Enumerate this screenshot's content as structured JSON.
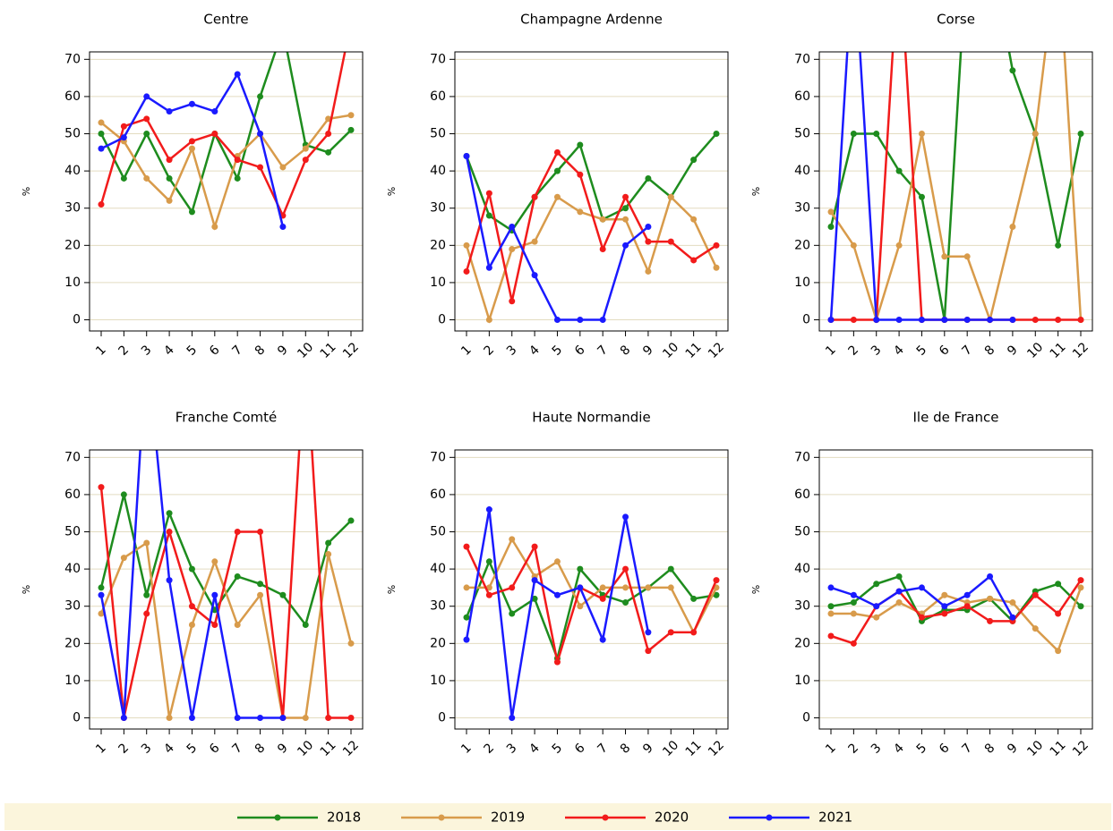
{
  "chart_data": [
    {
      "type": "line",
      "title": "Centre",
      "ylabel": "%",
      "categories": [
        "1",
        "2",
        "3",
        "4",
        "5",
        "6",
        "7",
        "8",
        "9",
        "10",
        "11",
        "12"
      ],
      "ylim": [
        -3,
        72
      ],
      "yticks": [
        0,
        10,
        20,
        30,
        40,
        50,
        60,
        70
      ],
      "grid": true,
      "series": [
        {
          "name": "2018",
          "color": "#1e8c1e",
          "values": [
            50,
            38,
            50,
            38,
            29,
            50,
            38,
            60,
            78,
            47,
            45,
            51
          ]
        },
        {
          "name": "2019",
          "color": "#d89b4b",
          "values": [
            53,
            48,
            38,
            32,
            46,
            25,
            44,
            50,
            41,
            46,
            54,
            55
          ]
        },
        {
          "name": "2020",
          "color": "#f21b1b",
          "values": [
            31,
            52,
            54,
            43,
            48,
            50,
            43,
            41,
            28,
            43,
            50,
            80
          ]
        },
        {
          "name": "2021",
          "color": "#1a1aff",
          "values": [
            46,
            49,
            60,
            56,
            58,
            56,
            66,
            50,
            25,
            null,
            null,
            null
          ]
        }
      ]
    },
    {
      "type": "line",
      "title": "Champagne Ardenne",
      "ylabel": "%",
      "categories": [
        "1",
        "2",
        "3",
        "4",
        "5",
        "6",
        "7",
        "8",
        "9",
        "10",
        "11",
        "12"
      ],
      "ylim": [
        -3,
        72
      ],
      "yticks": [
        0,
        10,
        20,
        30,
        40,
        50,
        60,
        70
      ],
      "grid": true,
      "series": [
        {
          "name": "2018",
          "color": "#1e8c1e",
          "values": [
            44,
            28,
            24,
            33,
            40,
            47,
            27,
            30,
            38,
            33,
            43,
            50
          ]
        },
        {
          "name": "2019",
          "color": "#d89b4b",
          "values": [
            20,
            0,
            19,
            21,
            33,
            29,
            27,
            27,
            13,
            33,
            27,
            14
          ]
        },
        {
          "name": "2020",
          "color": "#f21b1b",
          "values": [
            13,
            34,
            5,
            33,
            45,
            39,
            19,
            33,
            21,
            21,
            16,
            20
          ]
        },
        {
          "name": "2021",
          "color": "#1a1aff",
          "values": [
            44,
            14,
            25,
            12,
            0,
            0,
            0,
            20,
            25,
            null,
            null,
            null
          ]
        }
      ]
    },
    {
      "type": "line",
      "title": "Corse",
      "ylabel": "%",
      "categories": [
        "1",
        "2",
        "3",
        "4",
        "5",
        "6",
        "7",
        "8",
        "9",
        "10",
        "11",
        "12"
      ],
      "ylim": [
        -3,
        72
      ],
      "yticks": [
        0,
        10,
        20,
        30,
        40,
        50,
        60,
        70
      ],
      "grid": true,
      "series": [
        {
          "name": "2018",
          "color": "#1e8c1e",
          "values": [
            25,
            50,
            50,
            40,
            33,
            0,
            100,
            100,
            67,
            50,
            20,
            50
          ]
        },
        {
          "name": "2019",
          "color": "#d89b4b",
          "values": [
            29,
            20,
            0,
            20,
            50,
            17,
            17,
            0,
            25,
            50,
            100,
            0
          ]
        },
        {
          "name": "2020",
          "color": "#f21b1b",
          "values": [
            0,
            0,
            0,
            100,
            0,
            0,
            0,
            0,
            0,
            0,
            0,
            0
          ]
        },
        {
          "name": "2021",
          "color": "#1a1aff",
          "values": [
            0,
            100,
            0,
            0,
            0,
            0,
            0,
            0,
            0,
            null,
            null,
            null
          ]
        }
      ]
    },
    {
      "type": "line",
      "title": "Franche Comté",
      "ylabel": "%",
      "categories": [
        "1",
        "2",
        "3",
        "4",
        "5",
        "6",
        "7",
        "8",
        "9",
        "10",
        "11",
        "12"
      ],
      "ylim": [
        -3,
        72
      ],
      "yticks": [
        0,
        10,
        20,
        30,
        40,
        50,
        60,
        70
      ],
      "grid": true,
      "series": [
        {
          "name": "2018",
          "color": "#1e8c1e",
          "values": [
            35,
            60,
            33,
            55,
            40,
            29,
            38,
            36,
            33,
            25,
            47,
            53
          ]
        },
        {
          "name": "2019",
          "color": "#d89b4b",
          "values": [
            28,
            43,
            47,
            0,
            25,
            42,
            25,
            33,
            0,
            0,
            44,
            20
          ]
        },
        {
          "name": "2020",
          "color": "#f21b1b",
          "values": [
            62,
            0,
            28,
            50,
            30,
            25,
            50,
            50,
            0,
            100,
            0,
            0
          ]
        },
        {
          "name": "2021",
          "color": "#1a1aff",
          "values": [
            33,
            0,
            100,
            37,
            0,
            33,
            0,
            0,
            0,
            null,
            null,
            null
          ]
        }
      ]
    },
    {
      "type": "line",
      "title": "Haute Normandie",
      "ylabel": "%",
      "categories": [
        "1",
        "2",
        "3",
        "4",
        "5",
        "6",
        "7",
        "8",
        "9",
        "10",
        "11",
        "12"
      ],
      "ylim": [
        -3,
        72
      ],
      "yticks": [
        0,
        10,
        20,
        30,
        40,
        50,
        60,
        70
      ],
      "grid": true,
      "series": [
        {
          "name": "2018",
          "color": "#1e8c1e",
          "values": [
            27,
            42,
            28,
            32,
            16,
            40,
            33,
            31,
            35,
            40,
            32,
            33
          ]
        },
        {
          "name": "2019",
          "color": "#d89b4b",
          "values": [
            35,
            35,
            48,
            38,
            42,
            30,
            35,
            35,
            35,
            35,
            23,
            35
          ]
        },
        {
          "name": "2020",
          "color": "#f21b1b",
          "values": [
            46,
            33,
            35,
            46,
            15,
            35,
            32,
            40,
            18,
            23,
            23,
            37
          ]
        },
        {
          "name": "2021",
          "color": "#1a1aff",
          "values": [
            21,
            56,
            0,
            37,
            33,
            35,
            21,
            54,
            23,
            null,
            null,
            null
          ]
        }
      ]
    },
    {
      "type": "line",
      "title": "Ile de France",
      "ylabel": "%",
      "categories": [
        "1",
        "2",
        "3",
        "4",
        "5",
        "6",
        "7",
        "8",
        "9",
        "10",
        "11",
        "12"
      ],
      "ylim": [
        -3,
        72
      ],
      "yticks": [
        0,
        10,
        20,
        30,
        40,
        50,
        60,
        70
      ],
      "grid": true,
      "series": [
        {
          "name": "2018",
          "color": "#1e8c1e",
          "values": [
            30,
            31,
            36,
            38,
            26,
            29,
            29,
            32,
            26,
            34,
            36,
            30
          ]
        },
        {
          "name": "2019",
          "color": "#d89b4b",
          "values": [
            28,
            28,
            27,
            31,
            28,
            33,
            31,
            32,
            31,
            24,
            18,
            35
          ]
        },
        {
          "name": "2020",
          "color": "#f21b1b",
          "values": [
            22,
            20,
            30,
            34,
            27,
            28,
            30,
            26,
            26,
            33,
            28,
            37
          ]
        },
        {
          "name": "2021",
          "color": "#1a1aff",
          "values": [
            35,
            33,
            30,
            34,
            35,
            30,
            33,
            38,
            27,
            null,
            null,
            null
          ]
        }
      ]
    }
  ]
}
